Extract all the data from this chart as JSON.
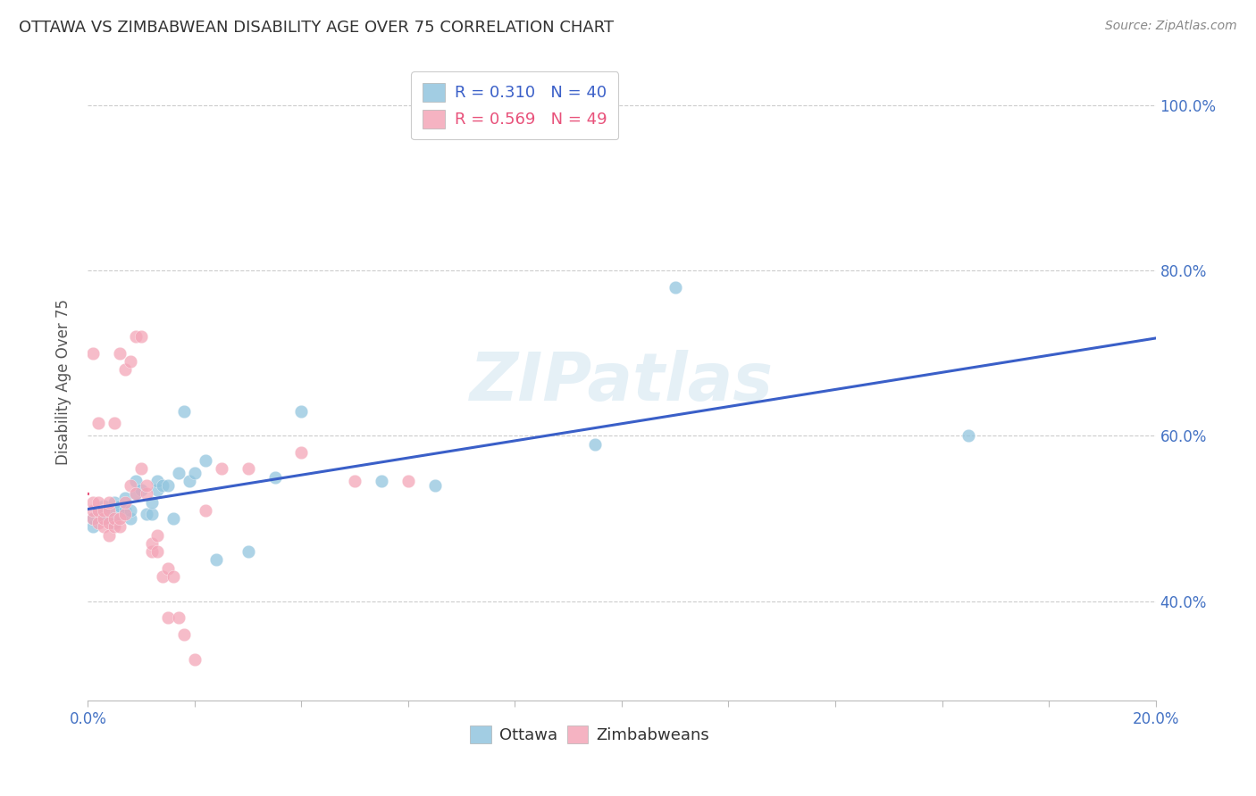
{
  "title": "OTTAWA VS ZIMBABWEAN DISABILITY AGE OVER 75 CORRELATION CHART",
  "source": "Source: ZipAtlas.com",
  "ylabel": "Disability Age Over 75",
  "xlim": [
    0.0,
    0.2
  ],
  "ylim": [
    0.28,
    1.05
  ],
  "xticks": [
    0.0,
    0.02,
    0.04,
    0.06,
    0.08,
    0.1,
    0.12,
    0.14,
    0.16,
    0.18,
    0.2
  ],
  "xticklabels": [
    "0.0%",
    "",
    "",
    "",
    "",
    "",
    "",
    "",
    "",
    "",
    "20.0%"
  ],
  "yticks": [
    0.4,
    0.6,
    0.8,
    1.0
  ],
  "yticklabels": [
    "40.0%",
    "60.0%",
    "80.0%",
    "100.0%"
  ],
  "watermark": "ZIPatlas",
  "legend_ottawa": "R = 0.310   N = 40",
  "legend_zimbabweans": "R = 0.569   N = 49",
  "ottawa_color": "#92c5de",
  "zimbabweans_color": "#f4a6b8",
  "trendline_ottawa_color": "#3a5fc8",
  "trendline_zimbabweans_color": "#e8517a",
  "background_color": "#ffffff",
  "grid_color": "#cccccc",
  "ottawa_R": 0.31,
  "ottawa_N": 40,
  "zimbabweans_R": 0.569,
  "zimbabweans_N": 49,
  "ottawa_points_x": [
    0.001,
    0.001,
    0.002,
    0.003,
    0.003,
    0.004,
    0.004,
    0.005,
    0.005,
    0.006,
    0.006,
    0.007,
    0.007,
    0.008,
    0.008,
    0.009,
    0.009,
    0.01,
    0.011,
    0.012,
    0.012,
    0.013,
    0.013,
    0.014,
    0.015,
    0.016,
    0.017,
    0.018,
    0.019,
    0.02,
    0.022,
    0.024,
    0.03,
    0.035,
    0.04,
    0.055,
    0.065,
    0.095,
    0.11,
    0.165
  ],
  "ottawa_points_y": [
    0.49,
    0.5,
    0.51,
    0.5,
    0.515,
    0.5,
    0.51,
    0.495,
    0.52,
    0.505,
    0.515,
    0.51,
    0.525,
    0.5,
    0.51,
    0.53,
    0.545,
    0.535,
    0.505,
    0.505,
    0.52,
    0.535,
    0.545,
    0.54,
    0.54,
    0.5,
    0.555,
    0.63,
    0.545,
    0.555,
    0.57,
    0.45,
    0.46,
    0.55,
    0.63,
    0.545,
    0.54,
    0.59,
    0.78,
    0.6
  ],
  "zimbabweans_points_x": [
    0.001,
    0.001,
    0.001,
    0.001,
    0.002,
    0.002,
    0.002,
    0.002,
    0.003,
    0.003,
    0.003,
    0.004,
    0.004,
    0.004,
    0.004,
    0.005,
    0.005,
    0.005,
    0.006,
    0.006,
    0.006,
    0.007,
    0.007,
    0.007,
    0.008,
    0.008,
    0.009,
    0.009,
    0.01,
    0.01,
    0.011,
    0.011,
    0.012,
    0.012,
    0.013,
    0.013,
    0.014,
    0.015,
    0.015,
    0.016,
    0.017,
    0.018,
    0.02,
    0.022,
    0.025,
    0.03,
    0.04,
    0.05,
    0.06
  ],
  "zimbabweans_points_y": [
    0.5,
    0.51,
    0.52,
    0.7,
    0.495,
    0.51,
    0.52,
    0.615,
    0.49,
    0.5,
    0.51,
    0.48,
    0.495,
    0.51,
    0.52,
    0.49,
    0.5,
    0.615,
    0.49,
    0.5,
    0.7,
    0.505,
    0.52,
    0.68,
    0.54,
    0.69,
    0.53,
    0.72,
    0.56,
    0.72,
    0.53,
    0.54,
    0.46,
    0.47,
    0.46,
    0.48,
    0.43,
    0.44,
    0.38,
    0.43,
    0.38,
    0.36,
    0.33,
    0.51,
    0.56,
    0.56,
    0.58,
    0.545,
    0.545
  ],
  "zim_trendline_x": [
    0.0,
    0.065
  ],
  "ottawa_trendline_x": [
    0.0,
    0.2
  ]
}
